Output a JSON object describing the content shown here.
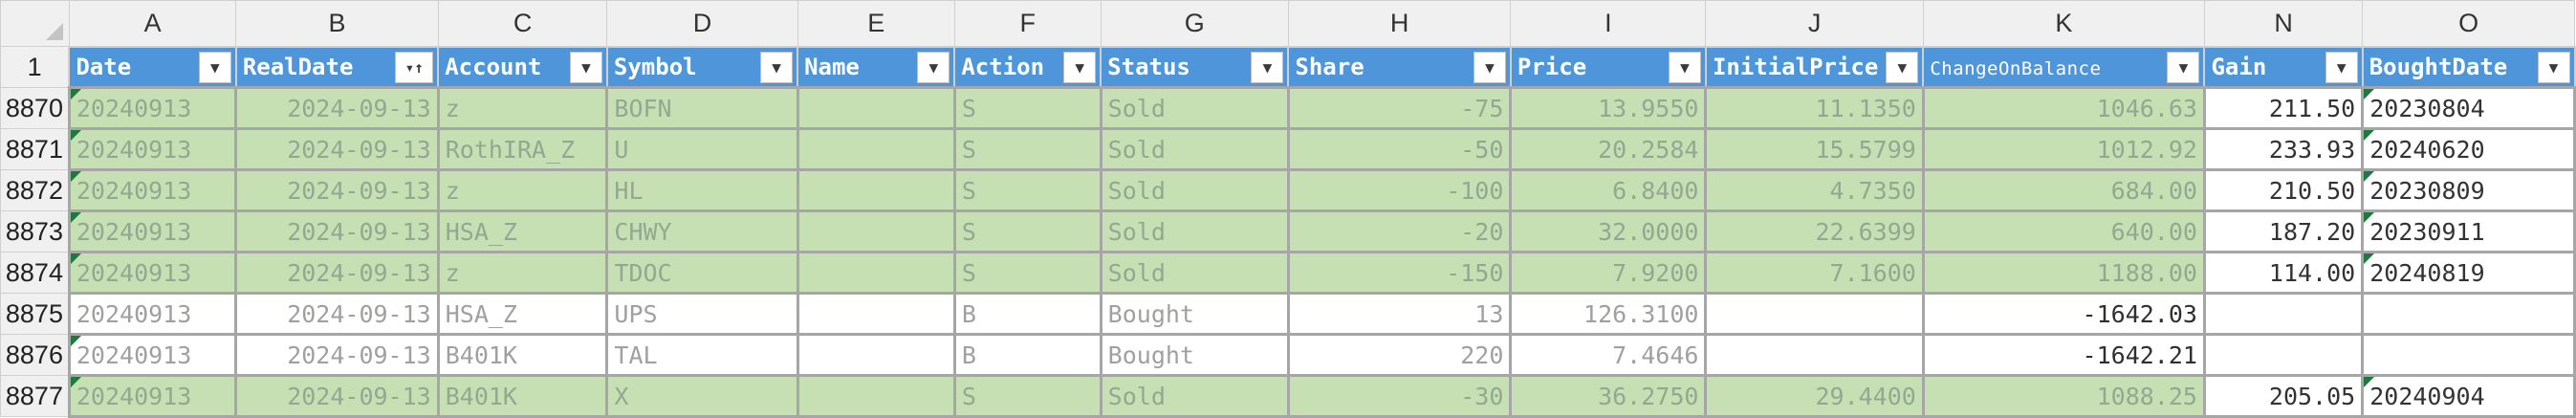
{
  "column_letters": [
    "A",
    "B",
    "C",
    "D",
    "E",
    "F",
    "G",
    "H",
    "I",
    "J",
    "K",
    "N",
    "O"
  ],
  "header_row_number": "1",
  "headers": [
    "Date",
    "RealDate",
    "Account",
    "Symbol",
    "Name",
    "Action",
    "Status",
    "Share",
    "Price",
    "InitialPrice",
    "ChangeOnBalance",
    "Gain",
    "BoughtDate"
  ],
  "colors": {
    "header_blue": "#4e95d9",
    "sold_green": "#c6e0b4",
    "gridline": "#a6a6a6",
    "comment_flag": "#1e7a3c"
  },
  "icons": {
    "filter_dropdown": "chevron-down-icon",
    "sort": "sort-ascending-icon",
    "select_all": "select-all-triangle-icon"
  },
  "rows": [
    {
      "num": "8870",
      "type": "sold",
      "cells": [
        "20240913",
        "2024-09-13",
        "z",
        "BOFN",
        "",
        "S",
        "Sold",
        "-75",
        "13.9550",
        "11.1350",
        "1046.63",
        "211.50",
        "20230804"
      ]
    },
    {
      "num": "8871",
      "type": "sold",
      "cells": [
        "20240913",
        "2024-09-13",
        "RothIRA_Z",
        "U",
        "",
        "S",
        "Sold",
        "-50",
        "20.2584",
        "15.5799",
        "1012.92",
        "233.93",
        "20240620"
      ]
    },
    {
      "num": "8872",
      "type": "sold",
      "cells": [
        "20240913",
        "2024-09-13",
        "z",
        "HL",
        "",
        "S",
        "Sold",
        "-100",
        "6.8400",
        "4.7350",
        "684.00",
        "210.50",
        "20230809"
      ]
    },
    {
      "num": "8873",
      "type": "sold",
      "cells": [
        "20240913",
        "2024-09-13",
        "HSA_Z",
        "CHWY",
        "",
        "S",
        "Sold",
        "-20",
        "32.0000",
        "22.6399",
        "640.00",
        "187.20",
        "20230911"
      ]
    },
    {
      "num": "8874",
      "type": "sold",
      "cells": [
        "20240913",
        "2024-09-13",
        "z",
        "TDOC",
        "",
        "S",
        "Sold",
        "-150",
        "7.9200",
        "7.1600",
        "1188.00",
        "114.00",
        "20240819"
      ]
    },
    {
      "num": "8875",
      "type": "bought",
      "cells": [
        "20240913",
        "2024-09-13",
        "HSA_Z",
        "UPS",
        "",
        "B",
        "Bought",
        "13",
        "126.3100",
        "",
        "-1642.03",
        "",
        ""
      ]
    },
    {
      "num": "8876",
      "type": "bought",
      "cells": [
        "20240913",
        "2024-09-13",
        "B401K",
        "TAL",
        "",
        "B",
        "Bought",
        "220",
        "7.4646",
        "",
        "-1642.21",
        "",
        ""
      ]
    },
    {
      "num": "8877",
      "type": "sold",
      "cells": [
        "20240913",
        "2024-09-13",
        "B401K",
        "X",
        "",
        "S",
        "Sold",
        "-30",
        "36.2750",
        "29.4400",
        "1088.25",
        "205.05",
        "20240904"
      ]
    }
  ]
}
